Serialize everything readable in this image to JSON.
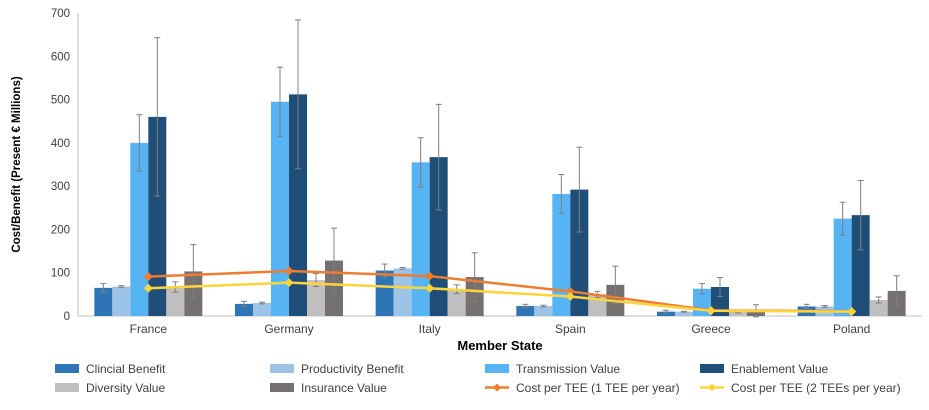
{
  "chart_data": {
    "type": "bar",
    "categories": [
      "France",
      "Germany",
      "Italy",
      "Spain",
      "Greece",
      "Poland"
    ],
    "ylabel": "Cost/Benefit (Present € Millions)",
    "xlabel": "Member State",
    "ylim": [
      0,
      700
    ],
    "yticks": [
      0,
      100,
      200,
      300,
      400,
      500,
      600,
      700
    ],
    "grid": false,
    "legend_position": "bottom",
    "series": [
      {
        "name": "Clincial Benefit",
        "color": "#2e75b6",
        "values": [
          65,
          28,
          105,
          23,
          10,
          22
        ],
        "error": [
          10,
          6,
          15,
          4,
          3,
          5
        ]
      },
      {
        "name": "Productivity Benefit",
        "color": "#9dc3e6",
        "values": [
          68,
          30,
          110,
          23,
          10,
          22
        ],
        "error": [
          2,
          2,
          2,
          2,
          1,
          2
        ]
      },
      {
        "name": "Transmission Value",
        "color": "#56b4f5",
        "values": [
          400,
          495,
          355,
          282,
          63,
          225
        ],
        "error": [
          65,
          80,
          57,
          45,
          12,
          38
        ]
      },
      {
        "name": "Enablement Value",
        "color": "#1f4e79",
        "values": [
          460,
          512,
          367,
          292,
          67,
          233
        ],
        "error": [
          183,
          172,
          122,
          98,
          22,
          80
        ]
      },
      {
        "name": "Diversity Value",
        "color": "#bfbfbf",
        "values": [
          67,
          83,
          62,
          50,
          10,
          37
        ],
        "error": [
          12,
          15,
          10,
          7,
          3,
          7
        ]
      },
      {
        "name": "Insurance Value",
        "color": "#767171",
        "values": [
          103,
          128,
          90,
          72,
          12,
          58
        ],
        "error": [
          62,
          75,
          56,
          43,
          14,
          35
        ]
      }
    ],
    "lines": [
      {
        "name": "Cost per TEE (1 TEE per year)",
        "color": "#ed7d31",
        "values": [
          91,
          104,
          92,
          57,
          13,
          11
        ]
      },
      {
        "name": "Cost per TEE (2 TEEs per year)",
        "color": "#ffd43b",
        "values": [
          64,
          77,
          64,
          45,
          12,
          10
        ]
      }
    ]
  }
}
